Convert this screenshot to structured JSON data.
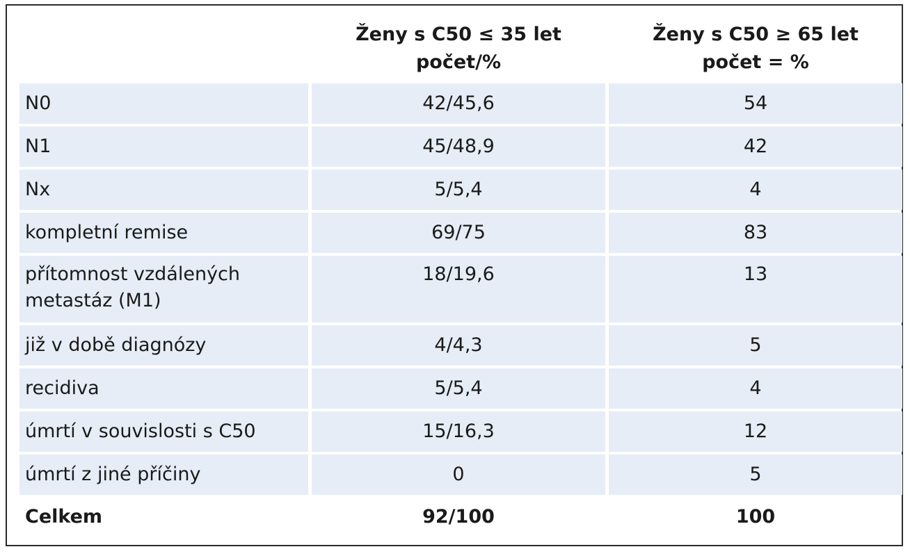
{
  "table": {
    "headers": [
      "",
      "Ženy s C50 ≤ 35 let\npočet/%",
      "Ženy s C50 ≥ 65 let\npočet = %"
    ],
    "rows": [
      {
        "label": "N0",
        "young": "42/45,6",
        "old": "54"
      },
      {
        "label": "N1",
        "young": "45/48,9",
        "old": "42"
      },
      {
        "label": "Nx",
        "young": "5/5,4",
        "old": "4"
      },
      {
        "label": "kompletní remise",
        "young": "69/75",
        "old": "83"
      },
      {
        "label": "přítomnost vzdálených\nmetastáz (M1)",
        "young": "18/19,6",
        "old": "13"
      },
      {
        "label": "již v době diagnózy",
        "young": "4/4,3",
        "old": "5"
      },
      {
        "label": "recidiva",
        "young": "5/5,4",
        "old": "4"
      },
      {
        "label": "úmrtí v souvislosti s C50",
        "young": "15/16,3",
        "old": "12"
      },
      {
        "label": "úmrtí z jiné příčiny",
        "young": "0",
        "old": "5"
      }
    ],
    "total": {
      "label": "Celkem",
      "young": "92/100",
      "old": "100"
    }
  },
  "colors": {
    "cell_background": "#e6edf7",
    "border": "#2a2a2a"
  }
}
